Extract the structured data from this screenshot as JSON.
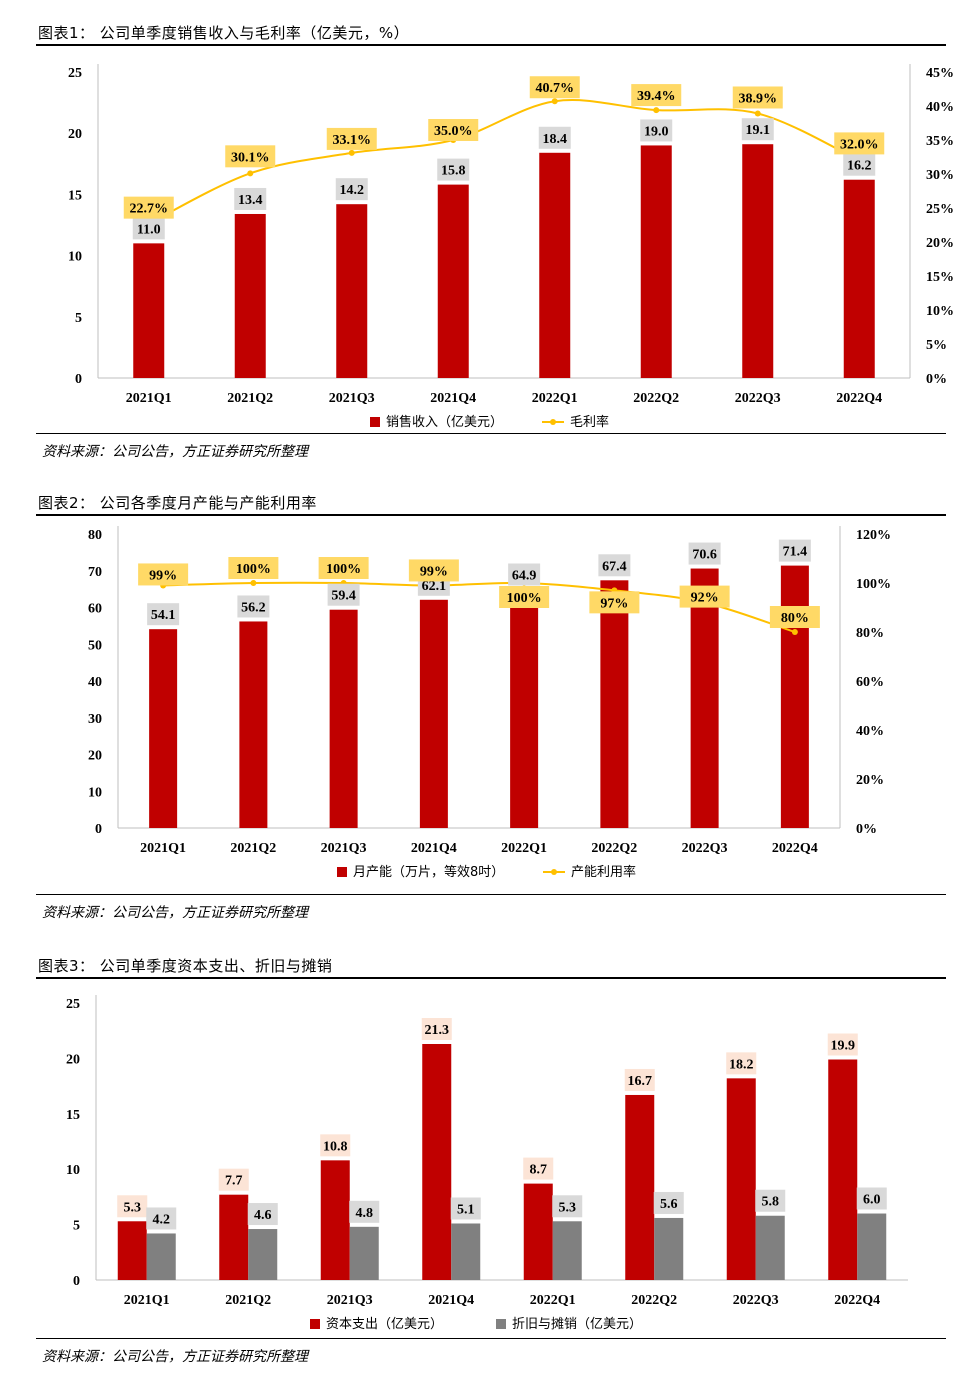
{
  "colors": {
    "red": "#c00000",
    "yellow": "#ffc000",
    "gray": "#808080",
    "label_gray_bg": "#d9d9d9",
    "label_yellow_bg": "#ffd966",
    "label_pink_bg": "#fce4d6"
  },
  "source_text": "资料来源：公司公告，方正证券研究所整理",
  "figures": [
    {
      "title": "图表1：  公司单季度销售收入与毛利率（亿美元，%）",
      "chart_data": {
        "type": "bar+line",
        "categories": [
          "2021Q1",
          "2021Q2",
          "2021Q3",
          "2021Q4",
          "2022Q1",
          "2022Q2",
          "2022Q3",
          "2022Q4"
        ],
        "series": [
          {
            "name": "销售收入（亿美元）",
            "type": "bar",
            "axis": "left",
            "values": [
              11.0,
              13.4,
              14.2,
              15.8,
              18.4,
              19.0,
              19.1,
              16.2
            ],
            "labels": [
              "11.0",
              "13.4",
              "14.2",
              "15.8",
              "18.4",
              "19.0",
              "19.1",
              "16.2"
            ]
          },
          {
            "name": "毛利率",
            "type": "line",
            "axis": "right",
            "values": [
              22.7,
              30.1,
              33.1,
              35.0,
              40.7,
              39.4,
              38.9,
              32.0
            ],
            "labels": [
              "22.7%",
              "30.1%",
              "33.1%",
              "35.0%",
              "40.7%",
              "39.4%",
              "38.9%",
              "32.0%"
            ]
          }
        ],
        "ylim_left": [
          0,
          25
        ],
        "yticks_left": [
          "0",
          "5",
          "10",
          "15",
          "20",
          "25"
        ],
        "ylim_right": [
          0,
          45
        ],
        "yticks_right": [
          "0%",
          "5%",
          "10%",
          "15%",
          "20%",
          "25%",
          "30%",
          "35%",
          "40%",
          "45%"
        ],
        "legend_position": "bottom"
      }
    },
    {
      "title": "图表2：  公司各季度月产能与产能利用率",
      "chart_data": {
        "type": "bar+line",
        "categories": [
          "2021Q1",
          "2021Q2",
          "2021Q3",
          "2021Q4",
          "2022Q1",
          "2022Q2",
          "2022Q3",
          "2022Q4"
        ],
        "series": [
          {
            "name": "月产能（万片，等效8吋）",
            "type": "bar",
            "axis": "left",
            "values": [
              54.1,
              56.2,
              59.4,
              62.1,
              64.9,
              67.4,
              70.6,
              71.4
            ],
            "labels": [
              "54.1",
              "56.2",
              "59.4",
              "62.1",
              "64.9",
              "67.4",
              "70.6",
              "71.4"
            ]
          },
          {
            "name": "产能利用率",
            "type": "line",
            "axis": "right",
            "values": [
              99,
              100,
              100,
              99,
              100,
              97,
              92,
              80
            ],
            "labels": [
              "99%",
              "100%",
              "100%",
              "99%",
              "100%",
              "97%",
              "92%",
              "80%"
            ]
          }
        ],
        "ylim_left": [
          0,
          80
        ],
        "yticks_left": [
          "0",
          "10",
          "20",
          "30",
          "40",
          "50",
          "60",
          "70",
          "80"
        ],
        "ylim_right": [
          0,
          120
        ],
        "yticks_right": [
          "0%",
          "20%",
          "40%",
          "60%",
          "80%",
          "100%",
          "120%"
        ],
        "legend_position": "bottom"
      }
    },
    {
      "title": "图表3：  公司单季度资本支出、折旧与摊销",
      "chart_data": {
        "type": "grouped-bar",
        "categories": [
          "2021Q1",
          "2021Q2",
          "2021Q3",
          "2021Q4",
          "2022Q1",
          "2022Q2",
          "2022Q3",
          "2022Q4"
        ],
        "series": [
          {
            "name": "资本支出（亿美元）",
            "type": "bar",
            "axis": "left",
            "values": [
              5.3,
              7.7,
              10.8,
              21.3,
              8.7,
              16.7,
              18.2,
              19.9
            ],
            "labels": [
              "5.3",
              "7.7",
              "10.8",
              "21.3",
              "8.7",
              "16.7",
              "18.2",
              "19.9"
            ]
          },
          {
            "name": "折旧与摊销（亿美元）",
            "type": "bar",
            "axis": "left",
            "values": [
              4.2,
              4.6,
              4.8,
              5.1,
              5.3,
              5.6,
              5.8,
              6.0
            ],
            "labels": [
              "4.2",
              "4.6",
              "4.8",
              "5.1",
              "5.3",
              "5.6",
              "5.8",
              "6.0"
            ]
          }
        ],
        "ylim_left": [
          0,
          25
        ],
        "yticks_left": [
          "0",
          "5",
          "10",
          "15",
          "20",
          "25"
        ],
        "legend_position": "bottom"
      }
    }
  ]
}
